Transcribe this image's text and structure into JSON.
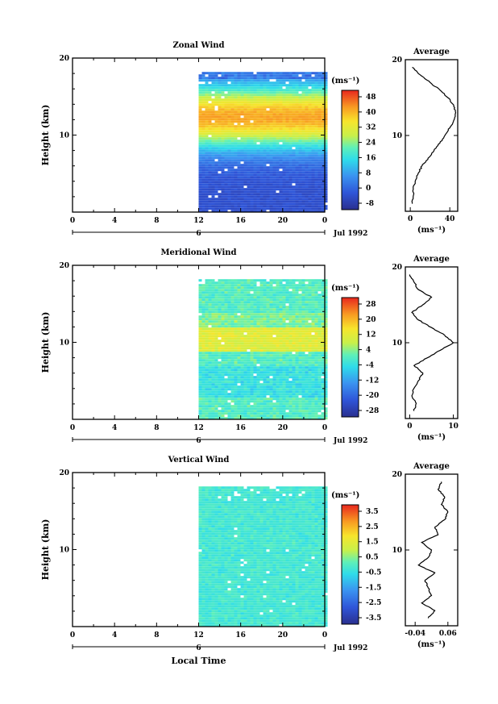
{
  "chart_data": [
    {
      "type": "heatmap",
      "title": "Zonal Wind",
      "ylabel": "Height (km)",
      "ylim": [
        0,
        20
      ],
      "yticks": [
        10,
        20
      ],
      "xlim": [
        0,
        24
      ],
      "xticks": [
        "0",
        "4",
        "8",
        "12",
        "16",
        "20",
        "0"
      ],
      "date_day": "6",
      "date_label": "Jul 1992",
      "data_start_hour": 12,
      "unit": "(ms⁻¹)",
      "colorbar_range": [
        -8,
        52
      ],
      "colorbar_ticks": [
        "48",
        "40",
        "32",
        "24",
        "16",
        "8",
        "0",
        "-8"
      ],
      "profile": {
        "title": "Average",
        "xticks": [
          "0",
          "40"
        ],
        "xlabel": "(ms⁻¹)",
        "xlim": [
          -5,
          48
        ],
        "heights": [
          1,
          2,
          3,
          4,
          5,
          6,
          7,
          8,
          9,
          10,
          11,
          12,
          13,
          14,
          15,
          16,
          17,
          18,
          19
        ],
        "values": [
          2,
          3,
          3,
          5,
          8,
          12,
          18,
          24,
          30,
          35,
          40,
          44,
          46,
          44,
          38,
          30,
          20,
          10,
          2
        ]
      }
    },
    {
      "type": "heatmap",
      "title": "Meridional Wind",
      "ylabel": "Height (km)",
      "ylim": [
        0,
        20
      ],
      "yticks": [
        10,
        20
      ],
      "xlim": [
        0,
        24
      ],
      "xticks": [
        "0",
        "4",
        "8",
        "12",
        "16",
        "20",
        "0"
      ],
      "date_day": "6",
      "date_label": "Jul 1992",
      "data_start_hour": 12,
      "unit": "(ms⁻¹)",
      "colorbar_range": [
        -32,
        32
      ],
      "colorbar_ticks": [
        "28",
        "20",
        "12",
        "4",
        "-4",
        "-12",
        "-20",
        "-28"
      ],
      "profile": {
        "title": "Average",
        "xticks": [
          "0",
          "10"
        ],
        "xlabel": "(ms⁻¹)",
        "xlim": [
          -1,
          11
        ],
        "heights": [
          1,
          2,
          3,
          4,
          5,
          6,
          7,
          8,
          9,
          10,
          11,
          12,
          13,
          14,
          15,
          16,
          17,
          18,
          19
        ],
        "values": [
          1,
          1.5,
          0.5,
          1,
          2,
          3,
          1,
          4,
          7,
          10,
          8,
          5,
          2,
          0.5,
          3,
          5,
          2,
          1,
          0
        ]
      }
    },
    {
      "type": "heatmap",
      "title": "Vertical Wind",
      "ylabel": "Height (km)",
      "xlabel": "Local Time",
      "ylim": [
        0,
        20
      ],
      "yticks": [
        10,
        20
      ],
      "xlim": [
        0,
        24
      ],
      "xticks": [
        "0",
        "4",
        "8",
        "12",
        "16",
        "20",
        "0"
      ],
      "date_day": "6",
      "date_label": "Jul 1992",
      "data_start_hour": 12,
      "unit": "(ms⁻¹)",
      "colorbar_range": [
        -4,
        4
      ],
      "colorbar_ticks": [
        "3.5",
        "2.5",
        "1.5",
        "0.5",
        "-0.5",
        "-1.5",
        "-2.5",
        "-3.5"
      ],
      "profile": {
        "title": "Average",
        "xticks": [
          "-0.04",
          "0.06"
        ],
        "xlabel": "(ms⁻¹)",
        "xlim": [
          -0.07,
          0.09
        ],
        "heights": [
          1,
          2,
          3,
          4,
          5,
          6,
          7,
          8,
          9,
          10,
          11,
          12,
          13,
          14,
          15,
          16,
          17,
          18,
          19
        ],
        "values": [
          0.0,
          0.02,
          -0.02,
          0.01,
          0.0,
          -0.01,
          0.02,
          -0.03,
          0.0,
          0.01,
          -0.02,
          0.03,
          0.02,
          0.05,
          0.06,
          0.04,
          0.05,
          0.03,
          0.04
        ]
      }
    }
  ]
}
